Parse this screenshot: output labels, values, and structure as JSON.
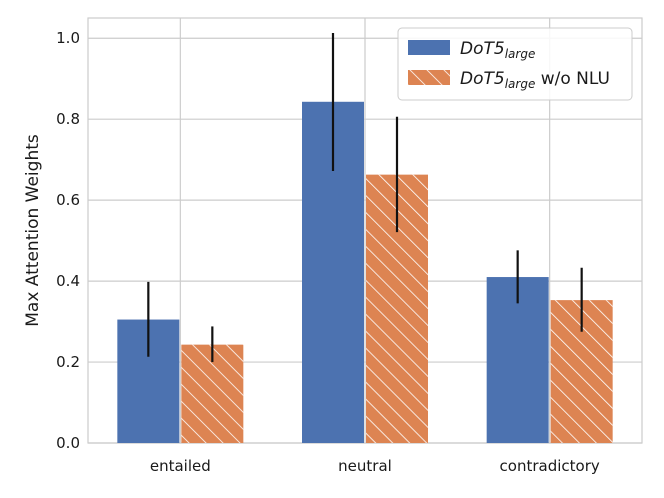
{
  "chart_data": {
    "type": "bar",
    "title": "",
    "xlabel": "",
    "ylabel": "Max Attention Weights",
    "ylim": [
      0,
      1.05
    ],
    "yticks": [
      "0.0",
      "0.2",
      "0.4",
      "0.6",
      "0.8",
      "1.0"
    ],
    "ytick_values": [
      0.0,
      0.2,
      0.4,
      0.6,
      0.8,
      1.0
    ],
    "grid": true,
    "legend_position": "top-right",
    "categories": [
      "entailed",
      "neutral",
      "contradictory"
    ],
    "series": [
      {
        "name": "DoT5large",
        "legend_base": "DoT5",
        "legend_sub": "large",
        "legend_suffix": "",
        "color": "#4c72b0",
        "hatch": false,
        "values": [
          0.305,
          0.843,
          0.41
        ],
        "err_low": [
          0.213,
          0.672,
          0.345
        ],
        "err_high": [
          0.398,
          1.013,
          0.476
        ]
      },
      {
        "name": "DoT5large w/o NLU",
        "legend_base": "DoT5",
        "legend_sub": "large",
        "legend_suffix": " w/o NLU",
        "color": "#dd8452",
        "hatch": true,
        "values": [
          0.243,
          0.663,
          0.353
        ],
        "err_low": [
          0.2,
          0.521,
          0.275
        ],
        "err_high": [
          0.288,
          0.806,
          0.433
        ]
      }
    ]
  }
}
